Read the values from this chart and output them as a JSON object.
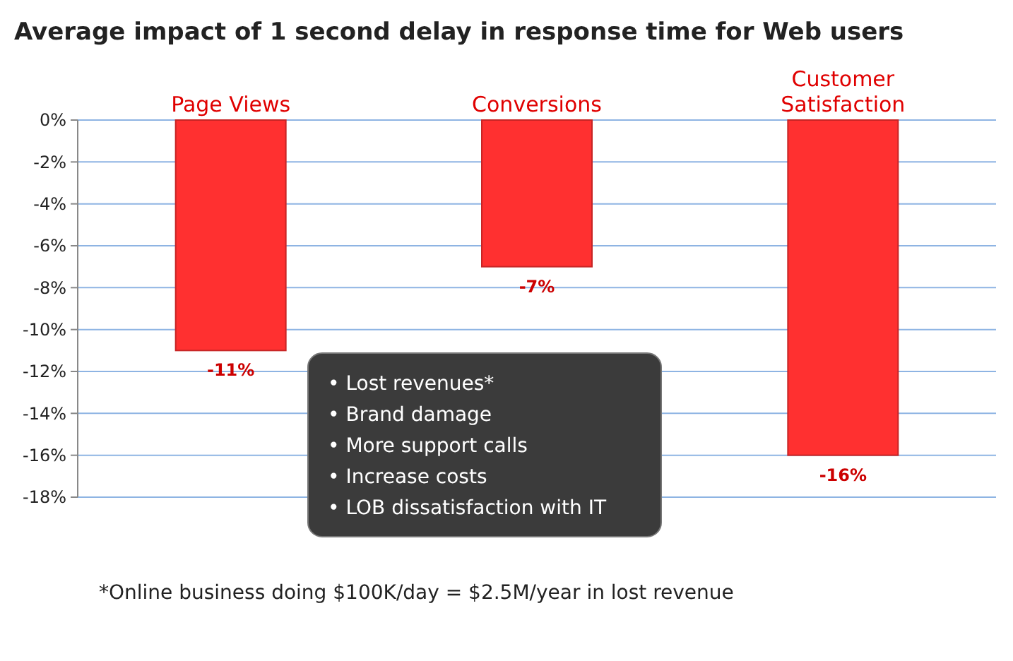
{
  "chart_data": {
    "type": "bar",
    "title": "Average impact of 1 second delay in response time for Web users",
    "categories": [
      "Page Views",
      "Conversions",
      "Customer Satisfaction"
    ],
    "values": [
      -11,
      -7,
      -16
    ],
    "color": "#ff3030",
    "value_labels": [
      "-11%",
      "-7%",
      "-16%"
    ],
    "ylim": [
      -18,
      0
    ],
    "yticks": [
      {
        "value": 0,
        "label": "0%"
      },
      {
        "value": -2,
        "label": "-2%"
      },
      {
        "value": -4,
        "label": "-4%"
      },
      {
        "value": -6,
        "label": "-6%"
      },
      {
        "value": -8,
        "label": "-8%"
      },
      {
        "value": -10,
        "label": "-10%"
      },
      {
        "value": -12,
        "label": "-12%"
      },
      {
        "value": -14,
        "label": "-14%"
      },
      {
        "value": -16,
        "label": "-16%"
      },
      {
        "value": -18,
        "label": "-18%"
      }
    ],
    "grid": "y",
    "annotations": [
      "• Lost revenues*",
      "• Brand damage",
      "• More support calls",
      "• Increase costs",
      "• LOB dissatisfaction  with IT",
      "*Online business doing $100K/day = $2.5M/year in lost revenue"
    ]
  }
}
